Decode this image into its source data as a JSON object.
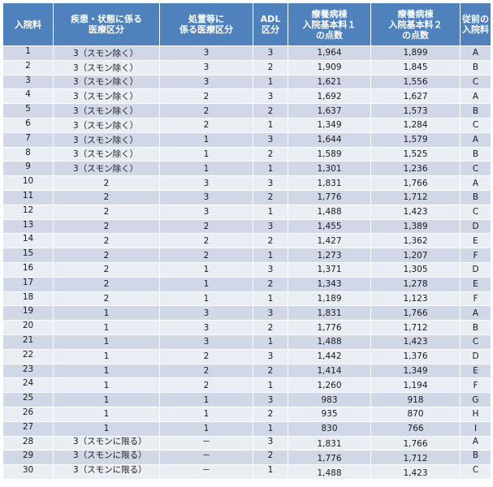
{
  "table": {
    "headers": [
      "入院料",
      "疾患・状態に係る\n医療区分",
      "処置等に\n係る医療区分",
      "ADL\n区分",
      "療養病棟\n入院基本料１\nの点数",
      "療養病棟\n入院基本料２\nの点数",
      "従前の\n入院料"
    ],
    "colors": {
      "header_bg": "#4f81bd",
      "header_text": "#ffffff",
      "row_odd_bg": "#d0d8e8",
      "row_even_bg": "#e9edf4"
    },
    "rows": [
      {
        "no": "1",
        "disease": "3（スモン除く）",
        "procedure": "3",
        "adl": "3",
        "fee1": "1,964",
        "fee2": "1,899",
        "prev": "A"
      },
      {
        "no": "2",
        "disease": "3（スモン除く）",
        "procedure": "3",
        "adl": "2",
        "fee1": "1,909",
        "fee2": "1,845",
        "prev": "B"
      },
      {
        "no": "3",
        "disease": "3（スモン除く）",
        "procedure": "3",
        "adl": "1",
        "fee1": "1,621",
        "fee2": "1,556",
        "prev": "C"
      },
      {
        "no": "4",
        "disease": "3（スモン除く）",
        "procedure": "2",
        "adl": "3",
        "fee1": "1,692",
        "fee2": "1,627",
        "prev": "A"
      },
      {
        "no": "5",
        "disease": "3（スモン除く）",
        "procedure": "2",
        "adl": "2",
        "fee1": "1,637",
        "fee2": "1,573",
        "prev": "B"
      },
      {
        "no": "6",
        "disease": "3（スモン除く）",
        "procedure": "2",
        "adl": "1",
        "fee1": "1,349",
        "fee2": "1,284",
        "prev": "C"
      },
      {
        "no": "7",
        "disease": "3（スモン除く）",
        "procedure": "1",
        "adl": "3",
        "fee1": "1,644",
        "fee2": "1,579",
        "prev": "A"
      },
      {
        "no": "8",
        "disease": "3（スモン除く）",
        "procedure": "1",
        "adl": "2",
        "fee1": "1,589",
        "fee2": "1,525",
        "prev": "B"
      },
      {
        "no": "9",
        "disease": "3（スモン除く）",
        "procedure": "1",
        "adl": "1",
        "fee1": "1,301",
        "fee2": "1,236",
        "prev": "C"
      },
      {
        "no": "10",
        "disease": "2",
        "procedure": "3",
        "adl": "3",
        "fee1": "1,831",
        "fee2": "1,766",
        "prev": "A"
      },
      {
        "no": "11",
        "disease": "2",
        "procedure": "3",
        "adl": "2",
        "fee1": "1,776",
        "fee2": "1,712",
        "prev": "B"
      },
      {
        "no": "12",
        "disease": "2",
        "procedure": "3",
        "adl": "1",
        "fee1": "1,488",
        "fee2": "1,423",
        "prev": "C"
      },
      {
        "no": "13",
        "disease": "2",
        "procedure": "2",
        "adl": "3",
        "fee1": "1,455",
        "fee2": "1,389",
        "prev": "D"
      },
      {
        "no": "14",
        "disease": "2",
        "procedure": "2",
        "adl": "2",
        "fee1": "1,427",
        "fee2": "1,362",
        "prev": "E"
      },
      {
        "no": "15",
        "disease": "2",
        "procedure": "2",
        "adl": "1",
        "fee1": "1,273",
        "fee2": "1,207",
        "prev": "F"
      },
      {
        "no": "16",
        "disease": "2",
        "procedure": "1",
        "adl": "3",
        "fee1": "1,371",
        "fee2": "1,305",
        "prev": "D"
      },
      {
        "no": "17",
        "disease": "2",
        "procedure": "1",
        "adl": "2",
        "fee1": "1,343",
        "fee2": "1,278",
        "prev": "E"
      },
      {
        "no": "18",
        "disease": "2",
        "procedure": "1",
        "adl": "1",
        "fee1": "1,189",
        "fee2": "1,123",
        "prev": "F"
      },
      {
        "no": "19",
        "disease": "1",
        "procedure": "3",
        "adl": "3",
        "fee1": "1,831",
        "fee2": "1,766",
        "prev": "A"
      },
      {
        "no": "20",
        "disease": "1",
        "procedure": "3",
        "adl": "2",
        "fee1": "1,776",
        "fee2": "1,712",
        "prev": "B"
      },
      {
        "no": "21",
        "disease": "1",
        "procedure": "3",
        "adl": "1",
        "fee1": "1,488",
        "fee2": "1,423",
        "prev": "C"
      },
      {
        "no": "22",
        "disease": "1",
        "procedure": "2",
        "adl": "3",
        "fee1": "1,442",
        "fee2": "1,376",
        "prev": "D"
      },
      {
        "no": "23",
        "disease": "1",
        "procedure": "2",
        "adl": "2",
        "fee1": "1,414",
        "fee2": "1,349",
        "prev": "E"
      },
      {
        "no": "24",
        "disease": "1",
        "procedure": "2",
        "adl": "1",
        "fee1": "1,260",
        "fee2": "1,194",
        "prev": "F"
      },
      {
        "no": "25",
        "disease": "1",
        "procedure": "1",
        "adl": "3",
        "fee1": "983",
        "fee2": "918",
        "prev": "G"
      },
      {
        "no": "26",
        "disease": "1",
        "procedure": "1",
        "adl": "2",
        "fee1": "935",
        "fee2": "870",
        "prev": "H"
      },
      {
        "no": "27",
        "disease": "1",
        "procedure": "1",
        "adl": "1",
        "fee1": "830",
        "fee2": "766",
        "prev": "I"
      },
      {
        "no": "28",
        "disease": "3（スモンに限る）",
        "procedure": "－",
        "adl": "3",
        "fee1": "1,831",
        "fee2": "1,766",
        "prev": "A"
      },
      {
        "no": "29",
        "disease": "3（スモンに限る）",
        "procedure": "－",
        "adl": "2",
        "fee1": "1,776",
        "fee2": "1,712",
        "prev": "B"
      },
      {
        "no": "30",
        "disease": "3（スモンに限る）",
        "procedure": "－",
        "adl": "1",
        "fee1": "1,488",
        "fee2": "1,423",
        "prev": "C"
      }
    ]
  }
}
